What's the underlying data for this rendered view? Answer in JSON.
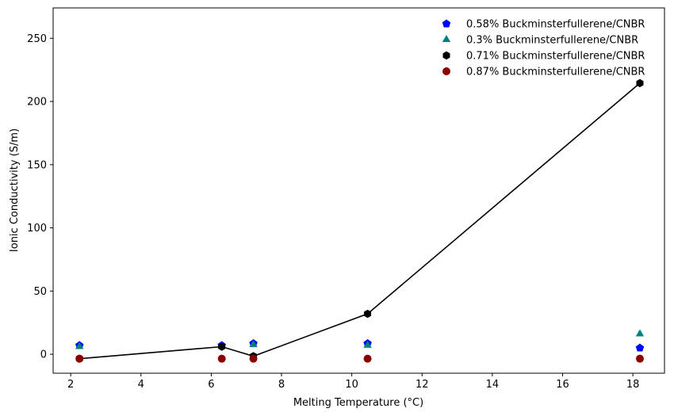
{
  "chart_data": {
    "type": "scatter",
    "xlabel": "Melting Temperature (°C)",
    "ylabel": "Ionic Conductivity (S/m)",
    "xlim": [
      1.5,
      18.9
    ],
    "ylim": [
      -15,
      274
    ],
    "x_ticks": [
      2,
      4,
      6,
      8,
      10,
      12,
      14,
      16,
      18
    ],
    "y_ticks": [
      0,
      50,
      100,
      150,
      200,
      250
    ],
    "grid": false,
    "legend_position": "top-right",
    "series": [
      {
        "name": "0.58% Buckminsterfullerene/CNBR",
        "marker": "pentagon",
        "color": "#0000ff",
        "connected": false,
        "x": [
          2.25,
          6.3,
          7.2,
          10.45,
          18.2
        ],
        "y": [
          7,
          7,
          8.5,
          8.5,
          5
        ]
      },
      {
        "name": "0.3% Buckminsterfullerene/CNBR",
        "marker": "triangle",
        "color": "#008080",
        "connected": false,
        "x": [
          2.25,
          6.3,
          7.2,
          10.45,
          18.2
        ],
        "y": [
          6,
          6.5,
          7.5,
          7,
          16
        ]
      },
      {
        "name": "0.71% Buckminsterfullerene/CNBR",
        "marker": "hexagon",
        "color": "#000000",
        "connected": true,
        "x": [
          2.25,
          6.3,
          7.2,
          10.45,
          18.2
        ],
        "y": [
          -3.5,
          6,
          -1.5,
          32,
          214.5
        ]
      },
      {
        "name": "0.87% Buckminsterfullerene/CNBR",
        "marker": "circle",
        "color": "#8b0000",
        "connected": false,
        "x": [
          2.25,
          6.3,
          7.2,
          10.45,
          18.2
        ],
        "y": [
          -3.5,
          -3.5,
          -3.5,
          -3.5,
          -3.5
        ]
      }
    ]
  }
}
